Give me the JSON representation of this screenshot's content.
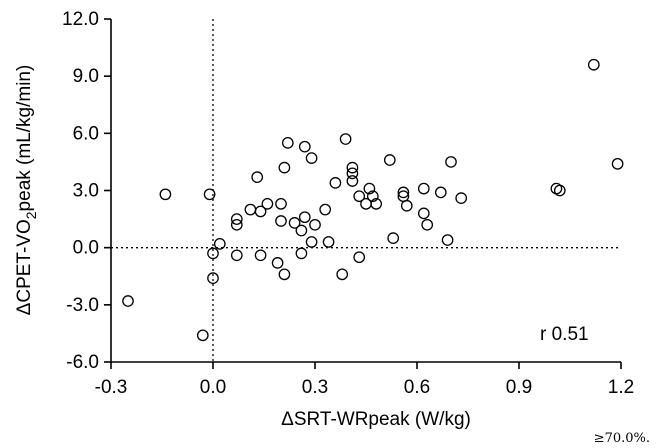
{
  "chart_data": {
    "type": "scatter",
    "xlabel": "ΔSRT-WRpeak (W/kg)",
    "ylabel_parts": [
      "ΔCPET-VO",
      "2",
      "peak (mL/kg/min)"
    ],
    "xlim": [
      -0.3,
      1.2
    ],
    "ylim": [
      -6.0,
      12.0
    ],
    "xticks": [
      -0.3,
      0.0,
      0.3,
      0.6,
      0.9,
      1.2
    ],
    "xtick_labels": [
      "-0.3",
      "0.0",
      "0.3",
      "0.6",
      "0.9",
      "1.2"
    ],
    "yticks": [
      -6.0,
      -3.0,
      0.0,
      3.0,
      6.0,
      9.0,
      12.0
    ],
    "ytick_labels": [
      "-6.0",
      "-3.0",
      "0.0",
      "3.0",
      "6.0",
      "9.0",
      "12.0"
    ],
    "reference_lines": {
      "x": 0.0,
      "y": 0.0,
      "style": "dotted"
    },
    "grid": false,
    "annotation": "r 0.51",
    "marker": "open-circle",
    "points": [
      [
        -0.25,
        -2.8
      ],
      [
        -0.14,
        2.8
      ],
      [
        -0.03,
        -4.6
      ],
      [
        -0.01,
        2.8
      ],
      [
        0.0,
        -0.3
      ],
      [
        0.0,
        -1.6
      ],
      [
        0.02,
        0.2
      ],
      [
        0.07,
        1.2
      ],
      [
        0.07,
        1.5
      ],
      [
        0.07,
        -0.4
      ],
      [
        0.11,
        2.0
      ],
      [
        0.13,
        3.7
      ],
      [
        0.14,
        1.9
      ],
      [
        0.14,
        -0.4
      ],
      [
        0.16,
        2.3
      ],
      [
        0.19,
        -0.8
      ],
      [
        0.2,
        2.3
      ],
      [
        0.2,
        1.4
      ],
      [
        0.21,
        4.2
      ],
      [
        0.21,
        -1.4
      ],
      [
        0.22,
        5.5
      ],
      [
        0.24,
        1.3
      ],
      [
        0.26,
        0.9
      ],
      [
        0.26,
        -0.3
      ],
      [
        0.27,
        5.3
      ],
      [
        0.27,
        1.6
      ],
      [
        0.29,
        4.7
      ],
      [
        0.29,
        0.3
      ],
      [
        0.3,
        1.2
      ],
      [
        0.33,
        2.0
      ],
      [
        0.34,
        0.3
      ],
      [
        0.36,
        3.4
      ],
      [
        0.38,
        -1.4
      ],
      [
        0.39,
        5.7
      ],
      [
        0.41,
        4.2
      ],
      [
        0.41,
        3.9
      ],
      [
        0.41,
        3.5
      ],
      [
        0.43,
        2.7
      ],
      [
        0.43,
        -0.5
      ],
      [
        0.45,
        2.3
      ],
      [
        0.46,
        3.1
      ],
      [
        0.47,
        2.7
      ],
      [
        0.48,
        2.3
      ],
      [
        0.52,
        4.6
      ],
      [
        0.53,
        0.5
      ],
      [
        0.56,
        2.9
      ],
      [
        0.56,
        2.7
      ],
      [
        0.57,
        2.2
      ],
      [
        0.62,
        3.1
      ],
      [
        0.62,
        1.8
      ],
      [
        0.63,
        1.2
      ],
      [
        0.67,
        2.9
      ],
      [
        0.69,
        0.4
      ],
      [
        0.7,
        4.5
      ],
      [
        0.73,
        2.6
      ],
      [
        1.01,
        3.1
      ],
      [
        1.02,
        3.0
      ],
      [
        1.12,
        9.6
      ],
      [
        1.19,
        4.4
      ]
    ]
  },
  "footer_text": "≥70.0%."
}
